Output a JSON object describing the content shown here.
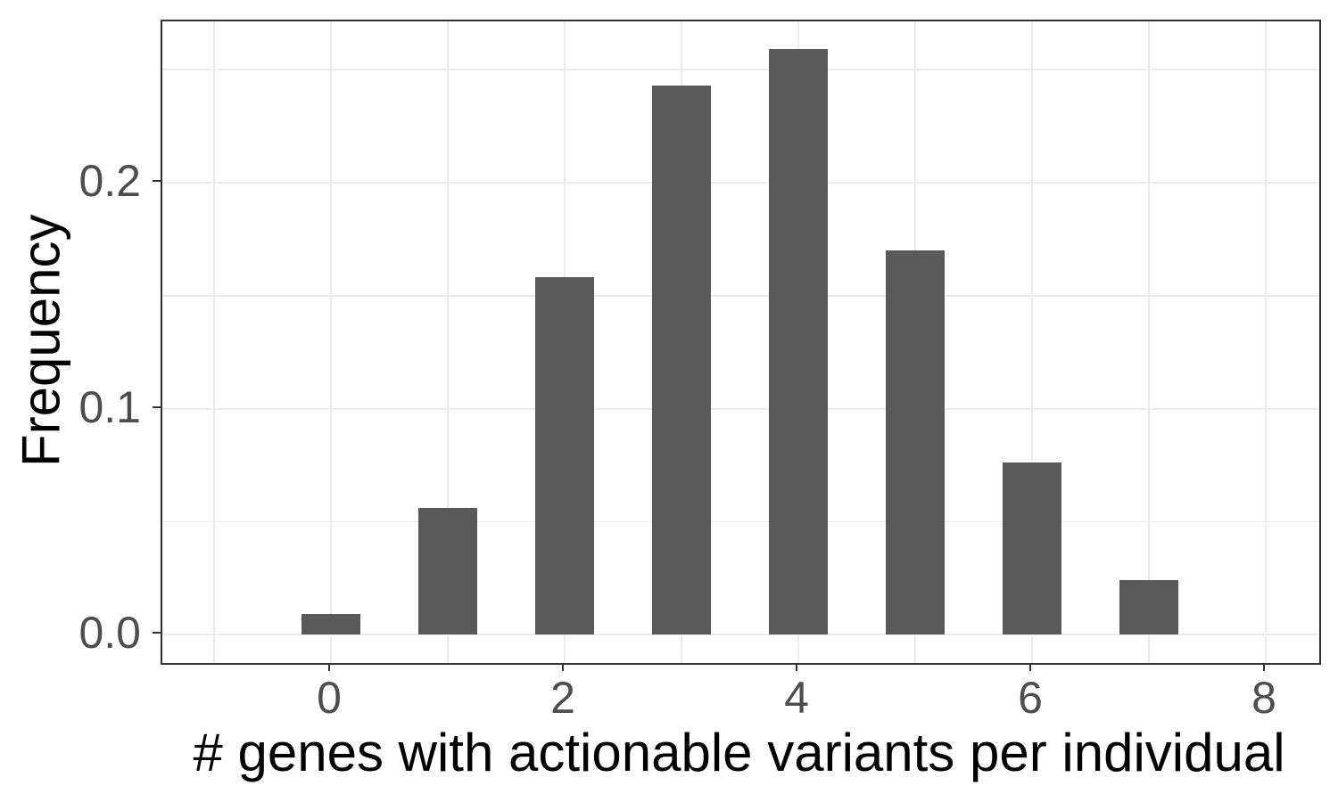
{
  "chart_data": {
    "type": "bar",
    "title": "",
    "xlabel": "# genes with actionable variants per individual",
    "ylabel": "Frequency",
    "categories": [
      0,
      1,
      2,
      3,
      4,
      5,
      6,
      7
    ],
    "values": [
      0.009,
      0.056,
      0.158,
      0.243,
      0.259,
      0.17,
      0.076,
      0.024
    ],
    "bar_width_units": 0.504,
    "x_ticks": [
      0,
      2,
      4,
      6,
      8
    ],
    "x_tick_labels": [
      "0",
      "2",
      "4",
      "6",
      "8"
    ],
    "x_minor_gridlines": [
      -1,
      1,
      3,
      5,
      7
    ],
    "y_ticks": [
      0.0,
      0.1,
      0.2
    ],
    "y_tick_labels": [
      "0.0",
      "0.1",
      "0.2"
    ],
    "y_minor_gridlines": [
      0.05,
      0.15,
      0.25
    ],
    "xlim": [
      -1.443,
      8.458
    ],
    "ylim": [
      -0.01262,
      0.2714
    ],
    "grid": true,
    "legend": false,
    "colors": {
      "bar_fill": "#595959",
      "gridline": "#EBEBEB",
      "panel_border": "#333333",
      "tick_mark": "#333333",
      "tick_label": "#4D4D4D",
      "axis_title": "#000000",
      "background": "#FFFFFF"
    }
  }
}
